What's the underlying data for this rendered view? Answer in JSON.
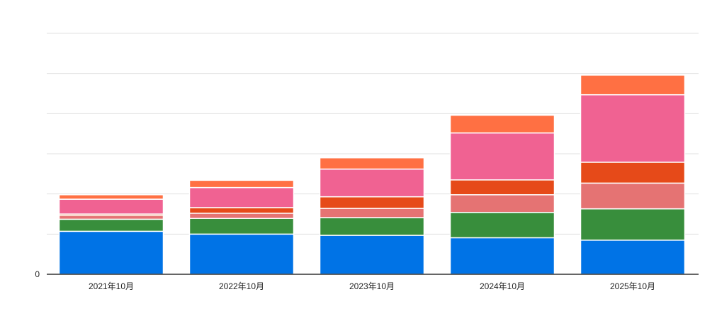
{
  "chart_data": {
    "type": "bar",
    "stacked": true,
    "title": "",
    "xlabel": "",
    "ylabel": "",
    "categories": [
      "2021年10月",
      "2022年10月",
      "2023年10月",
      "2024年10月",
      "2025年10月"
    ],
    "y_ticks": [
      "0"
    ],
    "grid": true,
    "legend": "none",
    "ylim": [
      0,
      60
    ],
    "series": [
      {
        "color": "#0073e6",
        "values": [
          10.7,
          10.0,
          9.7,
          9.1,
          8.5
        ]
      },
      {
        "color": "#388e3c",
        "values": [
          3.0,
          3.9,
          4.4,
          6.3,
          7.8
        ]
      },
      {
        "color": "#e57373",
        "values": [
          0.9,
          1.3,
          2.3,
          4.4,
          6.4
        ]
      },
      {
        "color": "#e64a19",
        "values": [
          0.4,
          1.4,
          2.9,
          3.7,
          5.2
        ]
      },
      {
        "color": "#f06292",
        "values": [
          3.7,
          5.0,
          6.9,
          11.7,
          16.8
        ]
      },
      {
        "color": "#ff7043",
        "values": [
          1.1,
          1.8,
          2.8,
          4.4,
          4.9
        ]
      }
    ]
  }
}
